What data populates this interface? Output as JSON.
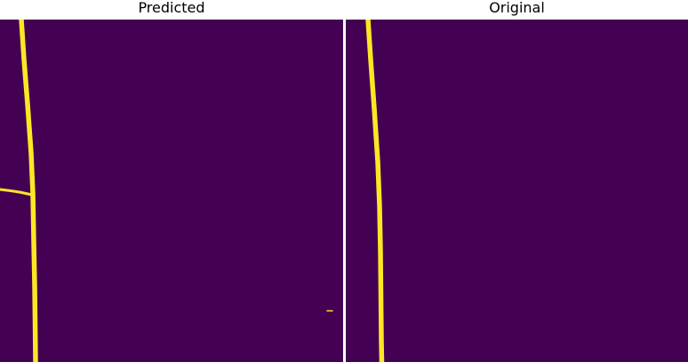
{
  "panels": [
    {
      "title": "Predicted"
    },
    {
      "title": "Original"
    }
  ],
  "colors": {
    "background": "#440154",
    "foreground": "#fde725"
  }
}
